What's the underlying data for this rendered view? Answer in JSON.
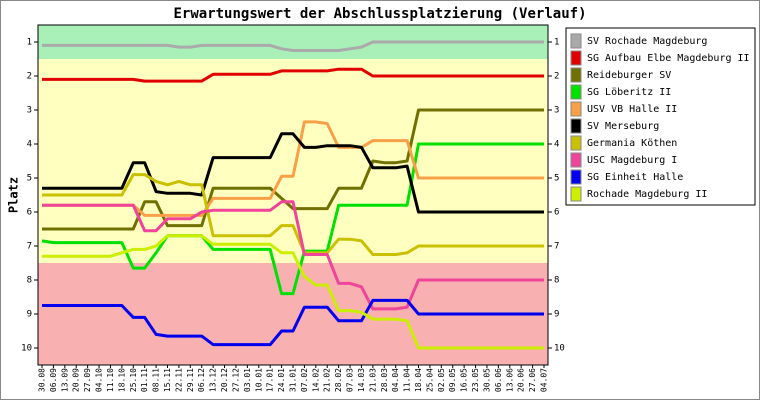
{
  "chart_data": {
    "type": "line",
    "title": "Erwartungswert der Abschlussplatzierung (Verlauf)",
    "y_label": "Platz",
    "categories": [
      "30.08",
      "06.09",
      "13.09",
      "20.09",
      "27.09",
      "04.10",
      "11.10",
      "18.10",
      "25.10",
      "01.11",
      "08.11",
      "15.11",
      "22.11",
      "29.11",
      "06.12",
      "13.12",
      "20.12",
      "27.12",
      "03.01",
      "10.01",
      "17.01",
      "24.01",
      "31.01",
      "07.02",
      "14.02",
      "21.02",
      "28.02",
      "07.03",
      "14.03",
      "21.03",
      "28.03",
      "04.04",
      "11.04",
      "18.04",
      "25.04",
      "02.05",
      "09.05",
      "16.05",
      "23.05",
      "30.05",
      "06.06",
      "13.06",
      "20.06",
      "27.06",
      "04.07"
    ],
    "ylim": [
      10.5,
      0.5
    ],
    "yticks": [
      1,
      2,
      3,
      4,
      5,
      6,
      7,
      8,
      9,
      10
    ],
    "background_bands": [
      {
        "from": 0.5,
        "to": 1.5,
        "color": "#a8f0b8"
      },
      {
        "from": 1.5,
        "to": 7.5,
        "color": "#ffffc0"
      },
      {
        "from": 7.5,
        "to": 10.5,
        "color": "#f8b0b0"
      }
    ],
    "series": [
      {
        "name": "SV Rochade Magdeburg",
        "color": "#aaaaaa",
        "values": [
          1.1,
          1.1,
          1.1,
          1.1,
          1.1,
          1.1,
          1.1,
          1.1,
          1.1,
          1.1,
          1.1,
          1.1,
          1.15,
          1.15,
          1.1,
          1.1,
          1.1,
          1.1,
          1.1,
          1.1,
          1.1,
          1.2,
          1.25,
          1.25,
          1.25,
          1.25,
          1.25,
          1.2,
          1.15,
          1.0,
          1.0,
          1.0,
          1.0,
          1.0,
          1.0,
          1.0,
          1.0,
          1.0,
          1.0,
          1.0,
          1.0,
          1.0,
          1.0,
          1.0,
          1.0
        ]
      },
      {
        "name": "SG Aufbau Elbe Magdeburg II",
        "color": "#e00000",
        "values": [
          2.1,
          2.1,
          2.1,
          2.1,
          2.1,
          2.1,
          2.1,
          2.1,
          2.1,
          2.15,
          2.15,
          2.15,
          2.15,
          2.15,
          2.15,
          1.95,
          1.95,
          1.95,
          1.95,
          1.95,
          1.95,
          1.85,
          1.85,
          1.85,
          1.85,
          1.85,
          1.8,
          1.8,
          1.8,
          2.0,
          2.0,
          2.0,
          2.0,
          2.0,
          2.0,
          2.0,
          2.0,
          2.0,
          2.0,
          2.0,
          2.0,
          2.0,
          2.0,
          2.0,
          2.0
        ]
      },
      {
        "name": "Reideburger SV",
        "color": "#707000",
        "values": [
          6.5,
          6.5,
          6.5,
          6.5,
          6.5,
          6.5,
          6.5,
          6.5,
          6.5,
          5.7,
          5.7,
          6.4,
          6.4,
          6.4,
          6.4,
          5.3,
          5.3,
          5.3,
          5.3,
          5.3,
          5.3,
          5.6,
          5.9,
          5.9,
          5.9,
          5.9,
          5.3,
          5.3,
          5.3,
          4.5,
          4.55,
          4.55,
          4.5,
          3.0,
          3.0,
          3.0,
          3.0,
          3.0,
          3.0,
          3.0,
          3.0,
          3.0,
          3.0,
          3.0,
          3.0
        ]
      },
      {
        "name": "SG Löberitz II",
        "color": "#00e000",
        "values": [
          6.85,
          6.9,
          6.9,
          6.9,
          6.9,
          6.9,
          6.9,
          6.9,
          7.65,
          7.65,
          7.2,
          6.7,
          6.7,
          6.7,
          6.7,
          7.1,
          7.1,
          7.1,
          7.1,
          7.1,
          7.1,
          8.4,
          8.4,
          7.15,
          7.15,
          7.15,
          5.8,
          5.8,
          5.8,
          5.8,
          5.8,
          5.8,
          5.8,
          4.0,
          4.0,
          4.0,
          4.0,
          4.0,
          4.0,
          4.0,
          4.0,
          4.0,
          4.0,
          4.0,
          4.0
        ]
      },
      {
        "name": "USV VB Halle II",
        "color": "#f8a048",
        "values": [
          5.8,
          5.8,
          5.8,
          5.8,
          5.8,
          5.8,
          5.8,
          5.8,
          5.8,
          6.1,
          6.1,
          6.1,
          6.1,
          6.1,
          6.1,
          5.6,
          5.6,
          5.6,
          5.6,
          5.6,
          5.6,
          4.95,
          4.95,
          3.35,
          3.35,
          3.4,
          4.1,
          4.1,
          4.1,
          3.9,
          3.9,
          3.9,
          3.9,
          5.0,
          5.0,
          5.0,
          5.0,
          5.0,
          5.0,
          5.0,
          5.0,
          5.0,
          5.0,
          5.0,
          5.0
        ]
      },
      {
        "name": "SV Merseburg",
        "color": "#000000",
        "values": [
          5.3,
          5.3,
          5.3,
          5.3,
          5.3,
          5.3,
          5.3,
          5.3,
          4.55,
          4.55,
          5.4,
          5.45,
          5.45,
          5.45,
          5.5,
          4.4,
          4.4,
          4.4,
          4.4,
          4.4,
          4.4,
          3.7,
          3.7,
          4.1,
          4.1,
          4.05,
          4.05,
          4.05,
          4.1,
          4.7,
          4.7,
          4.7,
          4.65,
          6.0,
          6.0,
          6.0,
          6.0,
          6.0,
          6.0,
          6.0,
          6.0,
          6.0,
          6.0,
          6.0,
          6.0
        ]
      },
      {
        "name": "Germania Köthen",
        "color": "#c8c000",
        "values": [
          5.5,
          5.5,
          5.5,
          5.5,
          5.5,
          5.5,
          5.5,
          5.5,
          4.9,
          4.9,
          5.1,
          5.2,
          5.1,
          5.2,
          5.2,
          6.7,
          6.7,
          6.7,
          6.7,
          6.7,
          6.7,
          6.4,
          6.4,
          7.2,
          7.2,
          7.2,
          6.8,
          6.8,
          6.85,
          7.25,
          7.25,
          7.25,
          7.2,
          7.0,
          7.0,
          7.0,
          7.0,
          7.0,
          7.0,
          7.0,
          7.0,
          7.0,
          7.0,
          7.0,
          7.0
        ]
      },
      {
        "name": "USC Magdeburg I",
        "color": "#ee4499",
        "values": [
          5.8,
          5.8,
          5.8,
          5.8,
          5.8,
          5.8,
          5.8,
          5.8,
          5.8,
          6.55,
          6.55,
          6.2,
          6.2,
          6.2,
          6.0,
          5.95,
          5.95,
          5.95,
          5.95,
          5.95,
          5.95,
          5.7,
          5.7,
          7.25,
          7.25,
          7.25,
          8.1,
          8.1,
          8.2,
          8.85,
          8.85,
          8.85,
          8.8,
          8.0,
          8.0,
          8.0,
          8.0,
          8.0,
          8.0,
          8.0,
          8.0,
          8.0,
          8.0,
          8.0,
          8.0
        ]
      },
      {
        "name": "SG Einheit Halle",
        "color": "#0000ee",
        "values": [
          8.75,
          8.75,
          8.75,
          8.75,
          8.75,
          8.75,
          8.75,
          8.75,
          9.1,
          9.1,
          9.6,
          9.65,
          9.65,
          9.65,
          9.65,
          9.9,
          9.9,
          9.9,
          9.9,
          9.9,
          9.9,
          9.5,
          9.5,
          8.8,
          8.8,
          8.8,
          9.2,
          9.2,
          9.2,
          8.6,
          8.6,
          8.6,
          8.6,
          9.0,
          9.0,
          9.0,
          9.0,
          9.0,
          9.0,
          9.0,
          9.0,
          9.0,
          9.0,
          9.0,
          9.0
        ]
      },
      {
        "name": "Rochade Magdeburg II",
        "color": "#ccee00",
        "values": [
          7.3,
          7.3,
          7.3,
          7.3,
          7.3,
          7.3,
          7.3,
          7.2,
          7.1,
          7.1,
          7.0,
          6.7,
          6.7,
          6.7,
          6.7,
          6.95,
          6.95,
          6.95,
          6.95,
          6.95,
          6.95,
          7.2,
          7.2,
          7.9,
          8.15,
          8.15,
          8.9,
          8.9,
          8.95,
          9.15,
          9.15,
          9.15,
          9.2,
          10.0,
          10.0,
          10.0,
          10.0,
          10.0,
          10.0,
          10.0,
          10.0,
          10.0,
          10.0,
          10.0,
          10.0
        ]
      }
    ]
  }
}
